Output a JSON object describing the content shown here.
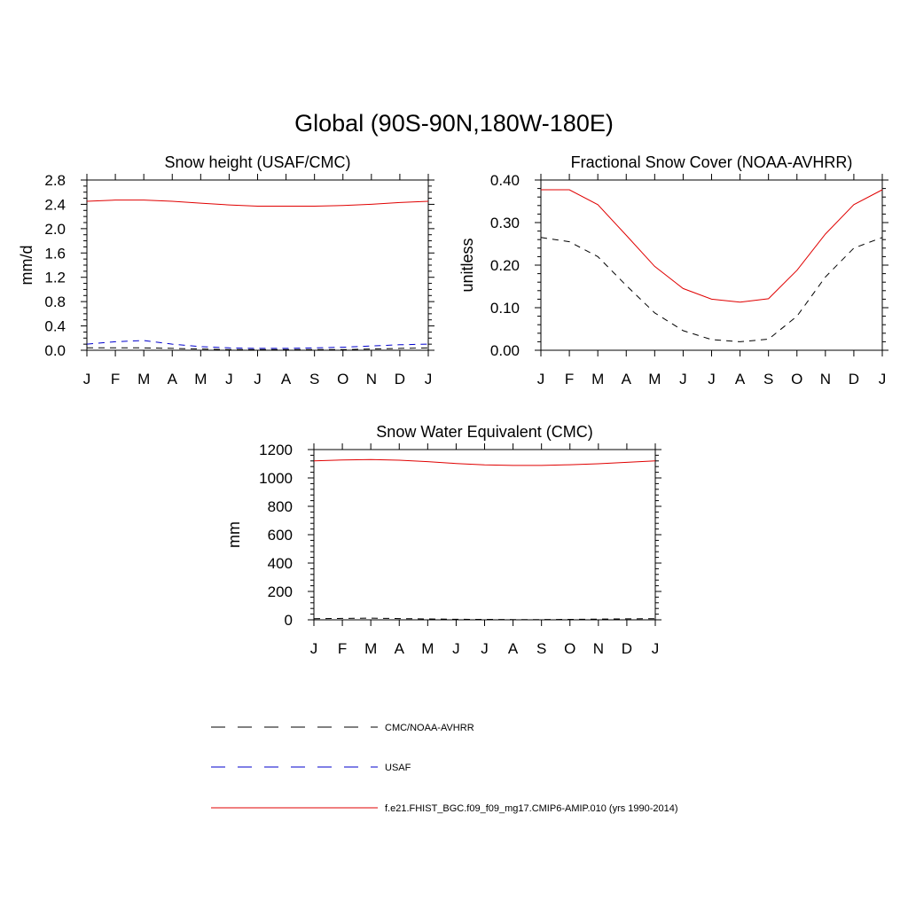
{
  "title": "Global (90S-90N,180W-180E)",
  "colors": {
    "cmc": "#000000",
    "usaf": "#0000cc",
    "model": "#e00000"
  },
  "legend": {
    "items": [
      {
        "label": "CMC/NOAA-AVHRR",
        "color": "#000000",
        "style": "dashed"
      },
      {
        "label": "USAF",
        "color": "#0000cc",
        "style": "dashed"
      },
      {
        "label": "f.e21.FHIST_BGC.f09_f09_mg17.CMIP6-AMIP.010 (yrs 1990-2014)",
        "color": "#e00000",
        "style": "solid"
      }
    ]
  },
  "chart_data": [
    {
      "type": "line",
      "title": "Snow height (USAF/CMC)",
      "ylabel": "mm/d",
      "xlabel": "",
      "categories": [
        "J",
        "F",
        "M",
        "A",
        "M",
        "J",
        "J",
        "A",
        "S",
        "O",
        "N",
        "D",
        "J"
      ],
      "ylim": [
        0,
        2.8
      ],
      "yticks": [
        "0.0",
        "0.4",
        "0.8",
        "1.2",
        "1.6",
        "2.0",
        "2.4",
        "2.8"
      ],
      "series": [
        {
          "name": "f.e21.FHIST_BGC.f09_f09_mg17.CMIP6-AMIP.010 (yrs 1990-2014)",
          "color": "#e00000",
          "dash": "",
          "values": [
            2.45,
            2.47,
            2.47,
            2.45,
            2.42,
            2.39,
            2.37,
            2.37,
            2.37,
            2.38,
            2.4,
            2.43,
            2.45
          ]
        },
        {
          "name": "USAF",
          "color": "#0000cc",
          "dash": "7,6",
          "values": [
            0.1,
            0.14,
            0.16,
            0.1,
            0.06,
            0.04,
            0.03,
            0.03,
            0.04,
            0.05,
            0.07,
            0.09,
            0.1
          ]
        },
        {
          "name": "CMC/NOAA-AVHRR",
          "color": "#000000",
          "dash": "7,6",
          "values": [
            0.04,
            0.04,
            0.04,
            0.03,
            0.02,
            0.01,
            0.01,
            0.01,
            0.01,
            0.01,
            0.02,
            0.03,
            0.04
          ]
        }
      ]
    },
    {
      "type": "line",
      "title": "Fractional Snow Cover (NOAA-AVHRR)",
      "ylabel": "unitless",
      "xlabel": "",
      "categories": [
        "J",
        "F",
        "M",
        "A",
        "M",
        "J",
        "J",
        "A",
        "S",
        "O",
        "N",
        "D",
        "J"
      ],
      "ylim": [
        0,
        0.4
      ],
      "yticks": [
        "0.00",
        "0.10",
        "0.20",
        "0.30",
        "0.40"
      ],
      "series": [
        {
          "name": "f.e21.FHIST_BGC.f09_f09_mg17.CMIP6-AMIP.010 (yrs 1990-2014)",
          "color": "#e00000",
          "dash": "",
          "values": [
            0.377,
            0.377,
            0.342,
            0.27,
            0.197,
            0.145,
            0.12,
            0.113,
            0.121,
            0.188,
            0.273,
            0.342,
            0.377
          ]
        },
        {
          "name": "CMC/NOAA-AVHRR",
          "color": "#000000",
          "dash": "7,6",
          "values": [
            0.265,
            0.255,
            0.22,
            0.152,
            0.088,
            0.046,
            0.025,
            0.02,
            0.026,
            0.08,
            0.172,
            0.24,
            0.265
          ]
        }
      ]
    },
    {
      "type": "line",
      "title": "Snow Water Equivalent (CMC)",
      "ylabel": "mm",
      "xlabel": "",
      "categories": [
        "J",
        "F",
        "M",
        "A",
        "M",
        "J",
        "J",
        "A",
        "S",
        "O",
        "N",
        "D",
        "J"
      ],
      "ylim": [
        0,
        1200
      ],
      "yticks": [
        "0",
        "200",
        "400",
        "600",
        "800",
        "1000",
        "1200"
      ],
      "series": [
        {
          "name": "f.e21.FHIST_BGC.f09_f09_mg17.CMIP6-AMIP.010 (yrs 1990-2014)",
          "color": "#e00000",
          "dash": "",
          "values": [
            1120,
            1127,
            1130,
            1125,
            1115,
            1102,
            1092,
            1088,
            1088,
            1093,
            1100,
            1110,
            1120
          ]
        },
        {
          "name": "CMC/NOAA-AVHRR",
          "color": "#000000",
          "dash": "7,6",
          "values": [
            8,
            10,
            12,
            9,
            6,
            4,
            3,
            2,
            2,
            3,
            5,
            7,
            8
          ]
        }
      ]
    }
  ]
}
